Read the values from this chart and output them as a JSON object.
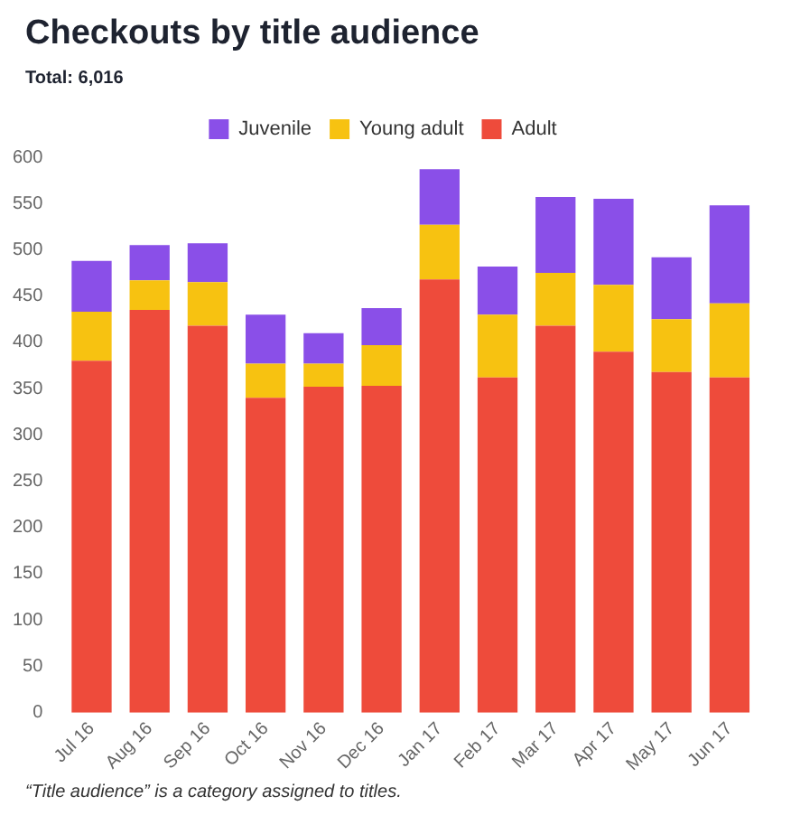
{
  "chart_data": {
    "type": "bar",
    "title": "Checkouts by title audience",
    "subtitle": "Total: 6,016",
    "categories": [
      "Jul 16",
      "Aug 16",
      "Sep 16",
      "Oct 16",
      "Nov 16",
      "Dec 16",
      "Jan 17",
      "Feb 17",
      "Mar 17",
      "Apr 17",
      "May 17",
      "Jun 17"
    ],
    "stacked": true,
    "legend": "top",
    "series": [
      {
        "name": "Adult",
        "color": "#ee4b3b",
        "values": [
          380,
          435,
          418,
          340,
          352,
          353,
          468,
          362,
          418,
          390,
          368,
          362
        ]
      },
      {
        "name": "Young adult",
        "color": "#f7c211",
        "values": [
          53,
          32,
          47,
          37,
          25,
          44,
          59,
          68,
          57,
          72,
          57,
          80
        ]
      },
      {
        "name": "Juvenile",
        "color": "#8a4fe8",
        "values": [
          55,
          38,
          42,
          53,
          33,
          40,
          60,
          52,
          82,
          93,
          67,
          106
        ]
      }
    ],
    "ylim": [
      0,
      600
    ],
    "yticks": [
      0,
      50,
      100,
      150,
      200,
      250,
      300,
      350,
      400,
      450,
      500,
      550,
      600
    ],
    "grid": false,
    "annotations": [
      "“Title audience” is a category assigned to titles."
    ]
  }
}
